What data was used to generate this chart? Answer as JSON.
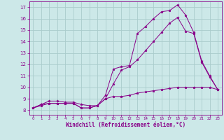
{
  "background_color": "#cce8e8",
  "grid_color": "#aacccc",
  "line_color": "#880088",
  "marker": "*",
  "xlabel": "Windchill (Refroidissement éolien,°C)",
  "xlabel_fontsize": 5.5,
  "ylabel_ticks": [
    8,
    9,
    10,
    11,
    12,
    13,
    14,
    15,
    16,
    17
  ],
  "xtick_labels": [
    "0",
    "1",
    "2",
    "3",
    "4",
    "5",
    "6",
    "7",
    "8",
    "9",
    "10",
    "11",
    "12",
    "13",
    "14",
    "15",
    "16",
    "17",
    "18",
    "19",
    "20",
    "21",
    "22",
    "23"
  ],
  "ylim": [
    7.6,
    17.5
  ],
  "xlim": [
    -0.5,
    23.5
  ],
  "series": [
    [
      8.2,
      8.5,
      8.6,
      8.6,
      8.6,
      8.6,
      8.2,
      8.2,
      8.4,
      9.3,
      11.6,
      11.8,
      11.9,
      14.7,
      15.3,
      16.0,
      16.6,
      16.7,
      17.2,
      16.3,
      14.8,
      12.3,
      11.0,
      9.8
    ],
    [
      8.2,
      8.5,
      8.8,
      8.8,
      8.7,
      8.7,
      8.5,
      8.4,
      8.4,
      9.0,
      10.3,
      11.5,
      11.8,
      12.4,
      13.2,
      14.0,
      14.8,
      15.6,
      16.1,
      14.9,
      14.7,
      12.2,
      10.9,
      9.8
    ],
    [
      8.2,
      8.4,
      8.6,
      8.6,
      8.6,
      8.6,
      8.2,
      8.2,
      8.4,
      9.0,
      9.2,
      9.2,
      9.3,
      9.5,
      9.6,
      9.7,
      9.8,
      9.9,
      10.0,
      10.0,
      10.0,
      10.0,
      10.0,
      9.8
    ]
  ]
}
